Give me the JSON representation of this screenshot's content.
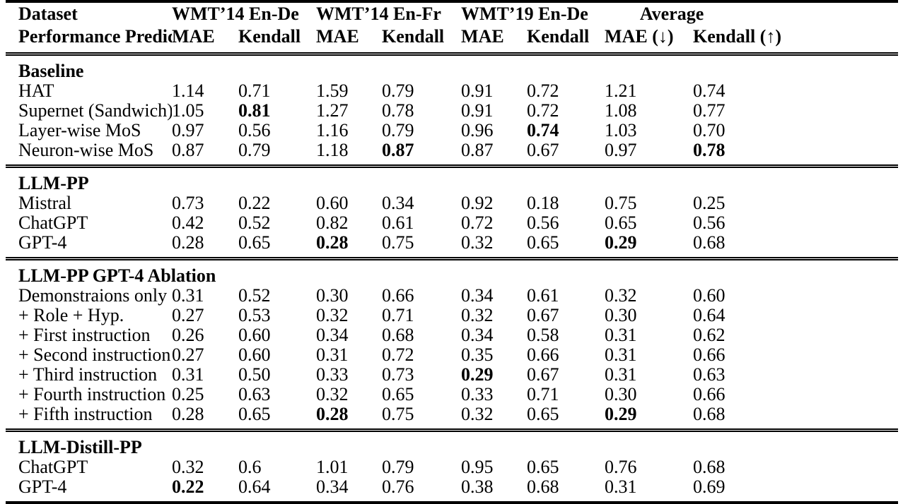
{
  "header": {
    "col1_line1": "Dataset",
    "col1_line2": "Performance Predictor",
    "groups": [
      {
        "label": "WMT’14 En-De",
        "sub": [
          "MAE",
          "Kendall"
        ]
      },
      {
        "label": "WMT’14 En-Fr",
        "sub": [
          "MAE",
          "Kendall"
        ]
      },
      {
        "label": "WMT’19 En-De",
        "sub": [
          "MAE",
          "Kendall"
        ]
      },
      {
        "label": "Average",
        "sub": [
          "MAE (↓)",
          "Kendall (↑)"
        ]
      }
    ]
  },
  "sections": [
    {
      "title": "Baseline",
      "rows": [
        {
          "label": "HAT",
          "values": [
            "1.14",
            "0.71",
            "1.59",
            "0.79",
            "0.91",
            "0.72",
            "1.21",
            "0.74"
          ],
          "bold": []
        },
        {
          "label": "Supernet (Sandwich)",
          "values": [
            "1.05",
            "0.81",
            "1.27",
            "0.78",
            "0.91",
            "0.72",
            "1.08",
            "0.77"
          ],
          "bold": [
            1
          ]
        },
        {
          "label": "Layer-wise MoS",
          "values": [
            "0.97",
            "0.56",
            "1.16",
            "0.79",
            "0.96",
            "0.74",
            "1.03",
            "0.70"
          ],
          "bold": [
            5
          ]
        },
        {
          "label": "Neuron-wise MoS",
          "values": [
            "0.87",
            "0.79",
            "1.18",
            "0.87",
            "0.87",
            "0.67",
            "0.97",
            "0.78"
          ],
          "bold": [
            3,
            7
          ]
        }
      ]
    },
    {
      "title": "LLM-PP",
      "rows": [
        {
          "label": "Mistral",
          "values": [
            "0.73",
            "0.22",
            "0.60",
            "0.34",
            "0.92",
            "0.18",
            "0.75",
            "0.25"
          ],
          "bold": []
        },
        {
          "label": "ChatGPT",
          "values": [
            "0.42",
            "0.52",
            "0.82",
            "0.61",
            "0.72",
            "0.56",
            "0.65",
            "0.56"
          ],
          "bold": []
        },
        {
          "label": "GPT-4",
          "values": [
            "0.28",
            "0.65",
            "0.28",
            "0.75",
            "0.32",
            "0.65",
            "0.29",
            "0.68"
          ],
          "bold": [
            2,
            6
          ]
        }
      ]
    },
    {
      "title": "LLM-PP GPT-4 Ablation",
      "rows": [
        {
          "label": "Demonstraions only",
          "values": [
            "0.31",
            "0.52",
            "0.30",
            "0.66",
            "0.34",
            "0.61",
            "0.32",
            "0.60"
          ],
          "bold": []
        },
        {
          "label": "+ Role + Hyp.",
          "values": [
            "0.27",
            "0.53",
            "0.32",
            "0.71",
            "0.32",
            "0.67",
            "0.30",
            "0.64"
          ],
          "bold": []
        },
        {
          "label": "+ First instruction",
          "values": [
            "0.26",
            "0.60",
            "0.34",
            "0.68",
            "0.34",
            "0.58",
            "0.31",
            "0.62"
          ],
          "bold": []
        },
        {
          "label": "+ Second instruction",
          "values": [
            "0.27",
            "0.60",
            "0.31",
            "0.72",
            "0.35",
            "0.66",
            "0.31",
            "0.66"
          ],
          "bold": []
        },
        {
          "label": "+ Third instruction",
          "values": [
            "0.31",
            "0.50",
            "0.33",
            "0.73",
            "0.29",
            "0.67",
            "0.31",
            "0.63"
          ],
          "bold": [
            4
          ]
        },
        {
          "label": "+ Fourth instruction",
          "values": [
            "0.25",
            "0.63",
            "0.32",
            "0.65",
            "0.33",
            "0.71",
            "0.30",
            "0.66"
          ],
          "bold": []
        },
        {
          "label": "+ Fifth instruction",
          "values": [
            "0.28",
            "0.65",
            "0.28",
            "0.75",
            "0.32",
            "0.65",
            "0.29",
            "0.68"
          ],
          "bold": [
            2,
            6
          ]
        }
      ]
    },
    {
      "title": "LLM-Distill-PP",
      "rows": [
        {
          "label": "ChatGPT",
          "values": [
            "0.32",
            "0.6",
            "1.01",
            "0.79",
            "0.95",
            "0.65",
            "0.76",
            "0.68"
          ],
          "bold": []
        },
        {
          "label": "GPT-4",
          "values": [
            "0.22",
            "0.64",
            "0.34",
            "0.76",
            "0.38",
            "0.68",
            "0.31",
            "0.69"
          ],
          "bold": [
            0
          ]
        }
      ]
    }
  ]
}
